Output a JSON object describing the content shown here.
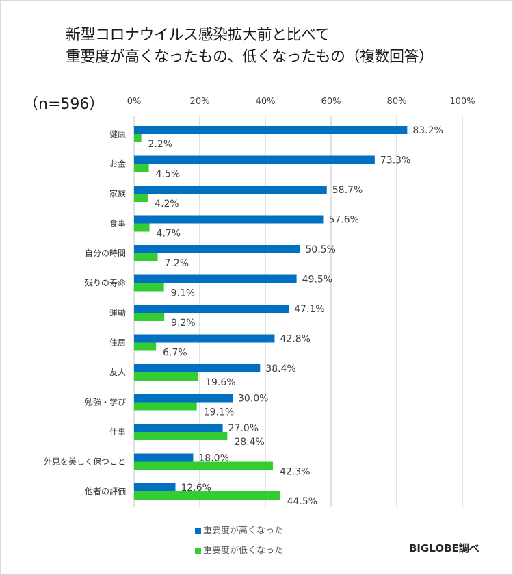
{
  "title_lines": [
    "新型コロナウイルス感染拡大前と比べて",
    "重要度が高くなったもの、低くなったもの（複数回答）"
  ],
  "sample_label": "（n=596）",
  "credit": "BIGLOBE調べ",
  "colors": {
    "high": "#0070c0",
    "low": "#33cc33",
    "grid": "#d9d9d9"
  },
  "chart_data": {
    "type": "bar",
    "orientation": "horizontal",
    "title": "新型コロナウイルス感染拡大前と比べて 重要度が高くなったもの、低くなったもの（複数回答）",
    "xlabel": "",
    "ylabel": "",
    "xlim": [
      0,
      100
    ],
    "x_ticks": [
      "0%",
      "20%",
      "40%",
      "60%",
      "80%",
      "100%"
    ],
    "x_tick_values": [
      0,
      20,
      40,
      60,
      80,
      100
    ],
    "grid": true,
    "legend_position": "bottom",
    "categories": [
      "健康",
      "お金",
      "家族",
      "食事",
      "自分の時間",
      "残りの寿命",
      "運動",
      "住居",
      "友人",
      "勉強・学び",
      "仕事",
      "外見を美しく保つこと",
      "他者の評価"
    ],
    "series": [
      {
        "name": "重要度が高くなった",
        "values": [
          83.2,
          73.3,
          58.7,
          57.6,
          50.5,
          49.5,
          47.1,
          42.8,
          38.4,
          30.0,
          27.0,
          18.0,
          12.6
        ]
      },
      {
        "name": "重要度が低くなった",
        "values": [
          2.2,
          4.5,
          4.2,
          4.7,
          7.2,
          9.1,
          9.2,
          6.7,
          19.6,
          19.1,
          28.4,
          42.3,
          44.5
        ]
      }
    ],
    "value_labels": [
      [
        "83.2%",
        "73.3%",
        "58.7%",
        "57.6%",
        "50.5%",
        "49.5%",
        "47.1%",
        "42.8%",
        "38.4%",
        "30.0%",
        "27.0%",
        "18.0%",
        "12.6%"
      ],
      [
        "2.2%",
        "4.5%",
        "4.2%",
        "4.7%",
        "7.2%",
        "9.1%",
        "9.2%",
        "6.7%",
        "19.6%",
        "19.1%",
        "28.4%",
        "42.3%",
        "44.5%"
      ]
    ]
  }
}
